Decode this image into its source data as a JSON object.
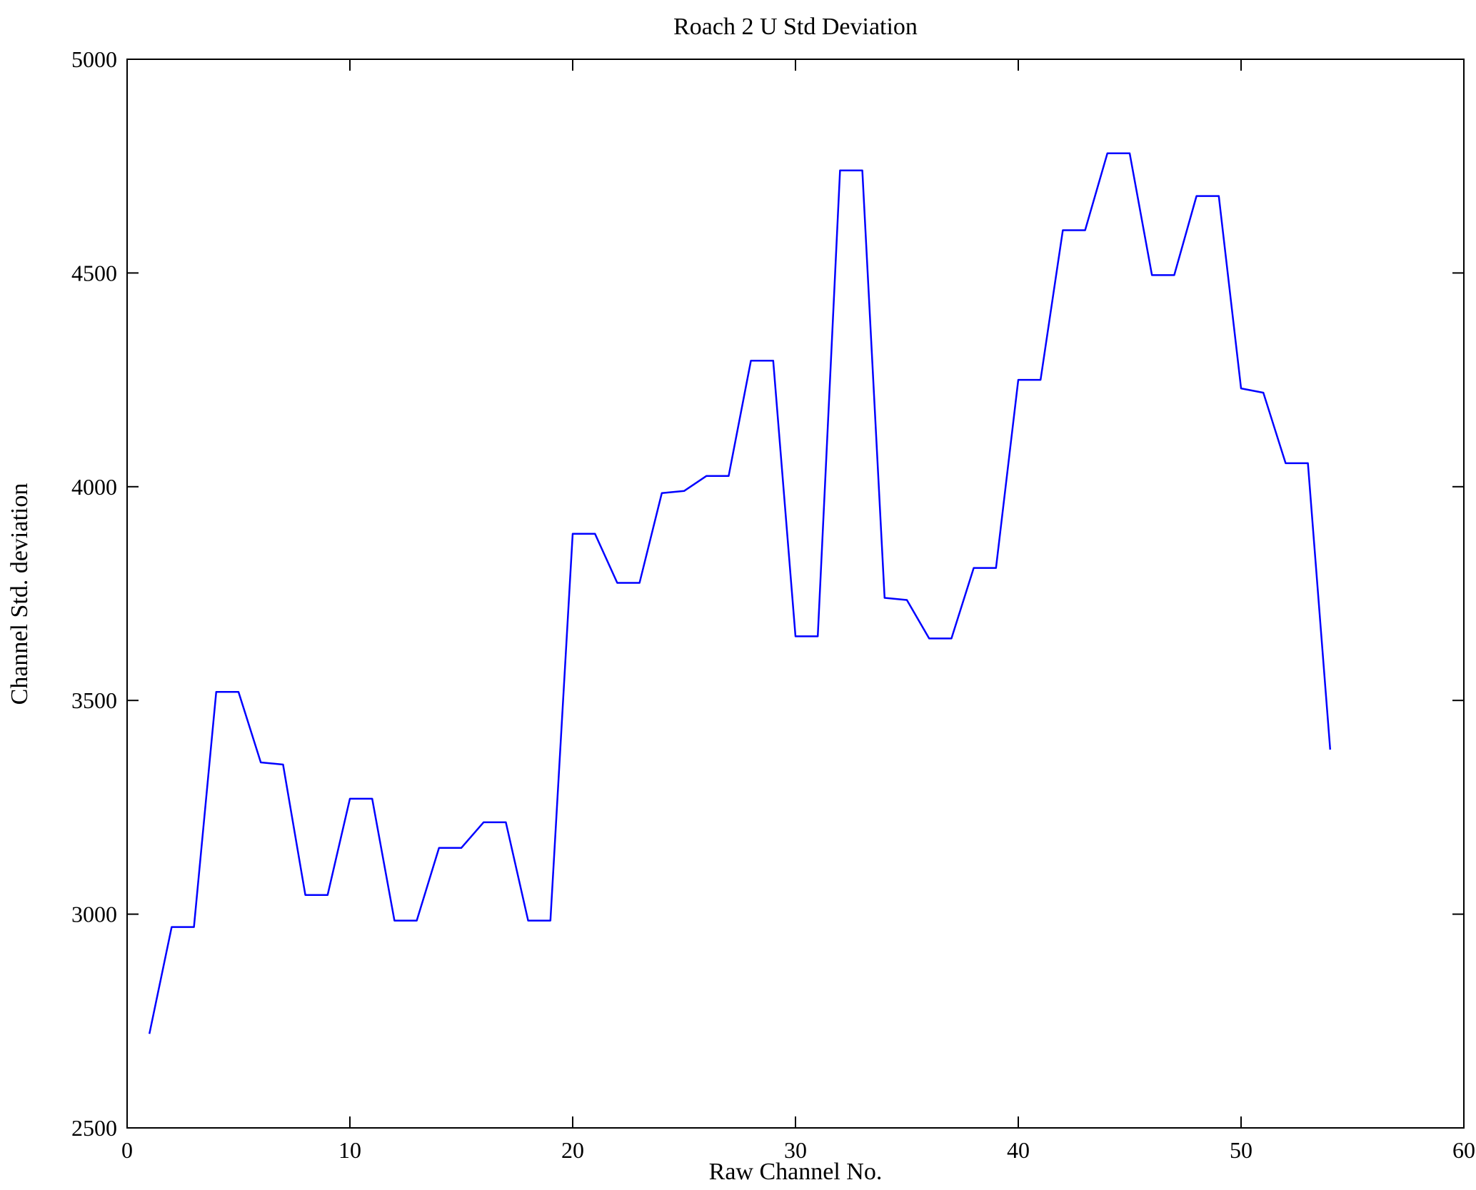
{
  "chart_data": {
    "type": "line",
    "title": "Roach 2 U Std Deviation",
    "xlabel": "Raw Channel No.",
    "ylabel": "Channel Std. deviation",
    "xlim": [
      0,
      60
    ],
    "ylim": [
      2500,
      5000
    ],
    "xticks": [
      0,
      10,
      20,
      30,
      40,
      50,
      60
    ],
    "yticks": [
      2500,
      3000,
      3500,
      4000,
      4500,
      5000
    ],
    "grid": false,
    "legend": "none",
    "line_color": "#0000ff",
    "axis_color": "#000000",
    "x": [
      1,
      2,
      3,
      4,
      5,
      6,
      7,
      8,
      9,
      10,
      11,
      12,
      13,
      14,
      15,
      16,
      17,
      18,
      19,
      20,
      21,
      22,
      23,
      24,
      25,
      26,
      27,
      28,
      29,
      30,
      31,
      32,
      33,
      34,
      35,
      36,
      37,
      38,
      39,
      40,
      41,
      42,
      43,
      44,
      45,
      46,
      47,
      48,
      49,
      50,
      51,
      52,
      53,
      54
    ],
    "y": [
      2720,
      2970,
      2970,
      3520,
      3520,
      3355,
      3350,
      3045,
      3045,
      3270,
      3270,
      2985,
      2985,
      3155,
      3155,
      3215,
      3215,
      2985,
      2985,
      3890,
      3890,
      3775,
      3775,
      3985,
      3990,
      4025,
      4025,
      4295,
      4295,
      3650,
      3650,
      4740,
      4740,
      3740,
      3735,
      3645,
      3645,
      3810,
      3810,
      4250,
      4250,
      4600,
      4600,
      4780,
      4780,
      4495,
      4495,
      4680,
      4680,
      4230,
      4220,
      4055,
      4055,
      3385
    ]
  }
}
